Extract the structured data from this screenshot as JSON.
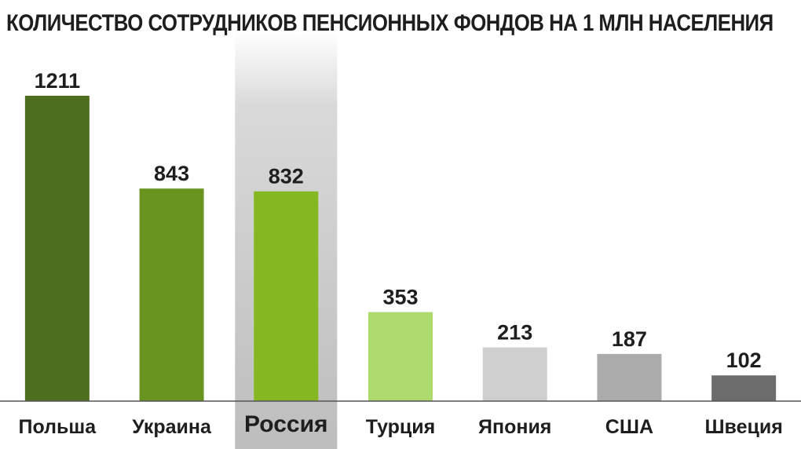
{
  "title": "КОЛИЧЕСТВО СОТРУДНИКОВ ПЕНСИОННЫХ ФОНДОВ НА 1 МЛН НАСЕЛЕНИЯ",
  "chart_data": {
    "type": "bar",
    "title": "КОЛИЧЕСТВО СОТРУДНИКОВ ПЕНСИОННЫХ ФОНДОВ НА 1 МЛН НАСЕЛЕНИЯ",
    "categories": [
      "Польша",
      "Украина",
      "Россия",
      "Турция",
      "Япония",
      "США",
      "Швеция"
    ],
    "values": [
      1211,
      843,
      832,
      353,
      213,
      187,
      102
    ],
    "colors": [
      "#4d6e1e",
      "#6a9420",
      "#85b722",
      "#acda6c",
      "#cfcfcf",
      "#ababab",
      "#6c6c6c"
    ],
    "highlighted_category": "Россия",
    "highlight_color": "#c9c9c9",
    "ylim": [
      0,
      1211
    ],
    "grid": false,
    "show_y_axis": false,
    "data_labels": true
  }
}
